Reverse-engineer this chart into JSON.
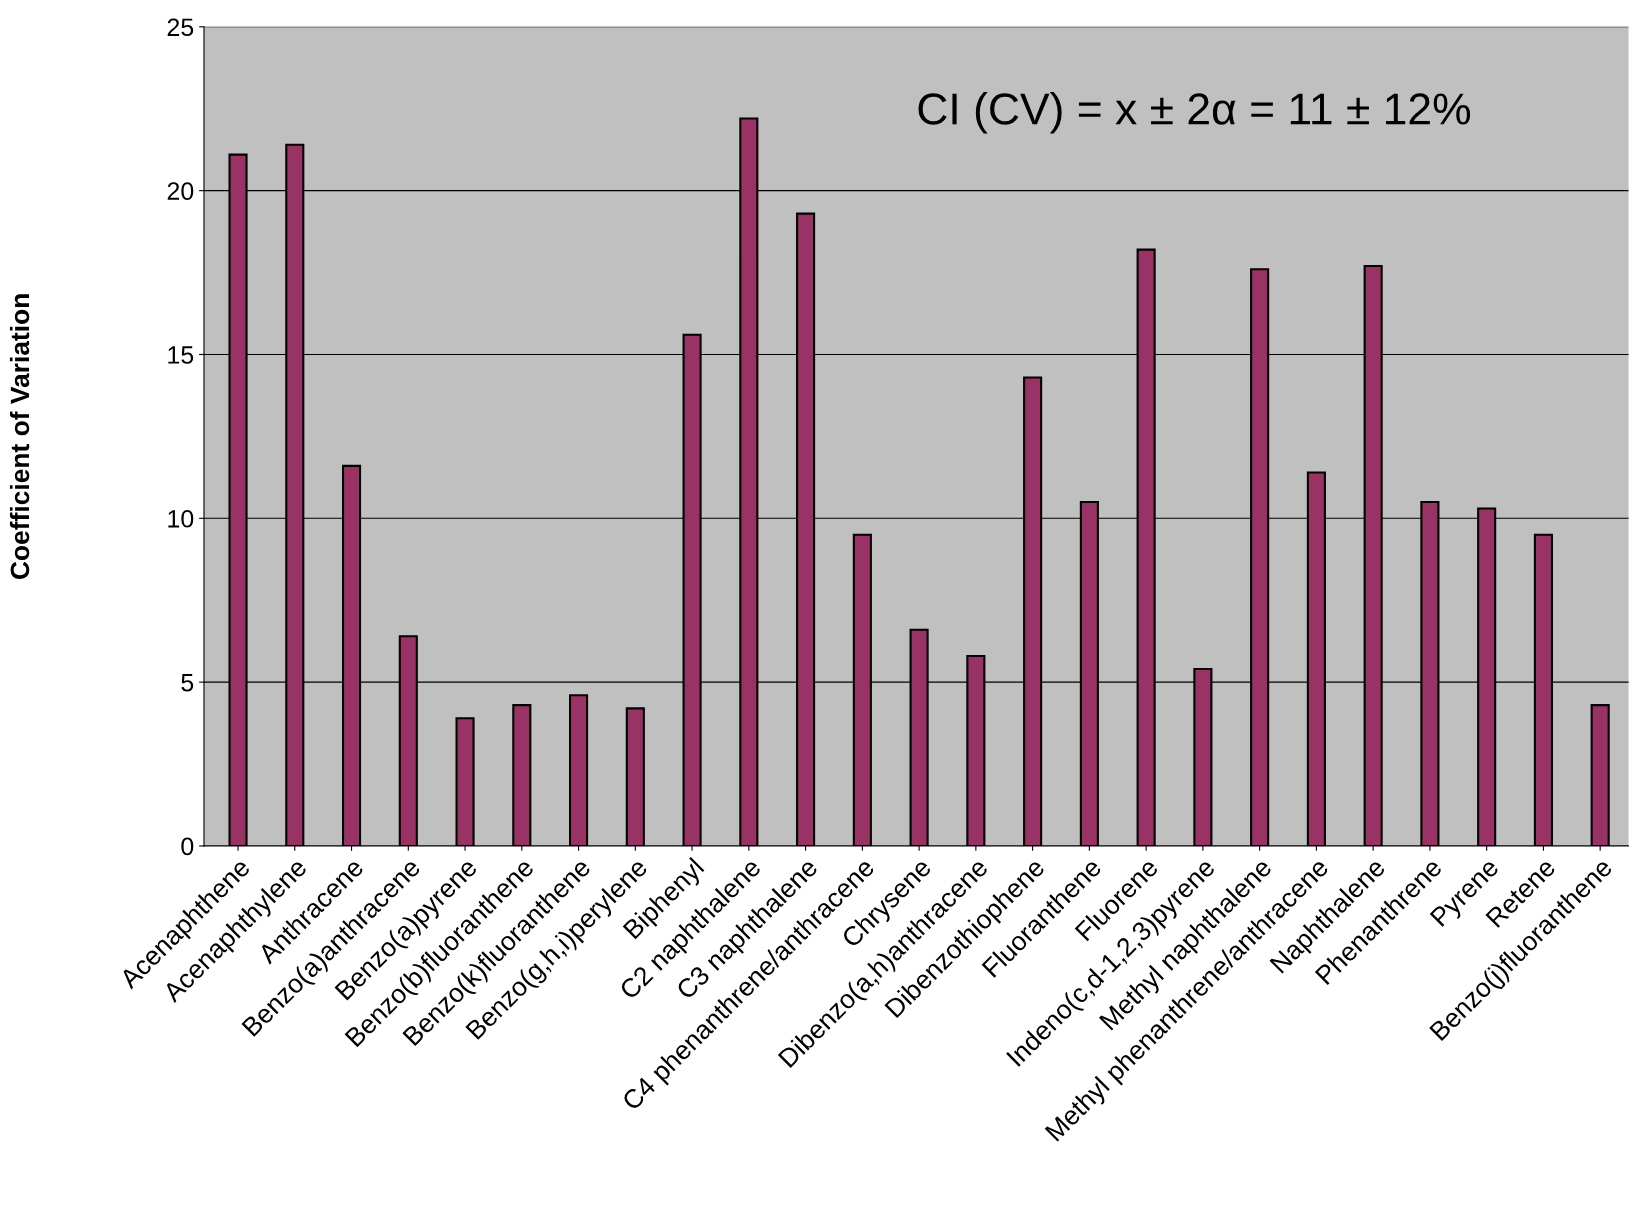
{
  "chart_data": {
    "type": "bar",
    "ylabel": "Coefficient of Variation",
    "categories": [
      "Acenaphthene",
      "Acenaphthylene",
      "Anthracene",
      "Benzo(a)anthracene",
      "Benzo(a)pyrene",
      "Benzo(b)fluoranthene",
      "Benzo(k)fluoranthene",
      "Benzo(g,h,i)perylene",
      "Biphenyl",
      "C2 naphthalene",
      "C3 naphthalene",
      "C4 phenanthrene/anthracene",
      "Chrysene",
      "Dibenzo(a,h)anthracene",
      "Dibenzothiophene",
      "Fluoranthene",
      "Fluorene",
      "Indeno(c,d-1,2,3)pyrene",
      "Methyl naphthalene",
      "Methyl phenanthrene/anthracene",
      "Naphthalene",
      "Phenanthrene",
      "Pyrene",
      "Retene",
      "Benzo(j)fluoranthene"
    ],
    "values": [
      21.1,
      21.4,
      11.6,
      6.4,
      3.9,
      4.3,
      4.6,
      4.2,
      15.6,
      22.2,
      19.3,
      9.5,
      6.6,
      5.8,
      14.3,
      10.5,
      18.2,
      5.4,
      17.6,
      11.4,
      17.7,
      10.5,
      10.3,
      9.5,
      4.3
    ],
    "color": "#993366",
    "ylim": [
      0,
      25
    ],
    "yticks": [
      0,
      5,
      10,
      15,
      20,
      25
    ],
    "grid": "y",
    "legend": false,
    "annotations": [
      "CI (CV) = x ± 2α = 11 ± 12%"
    ]
  }
}
